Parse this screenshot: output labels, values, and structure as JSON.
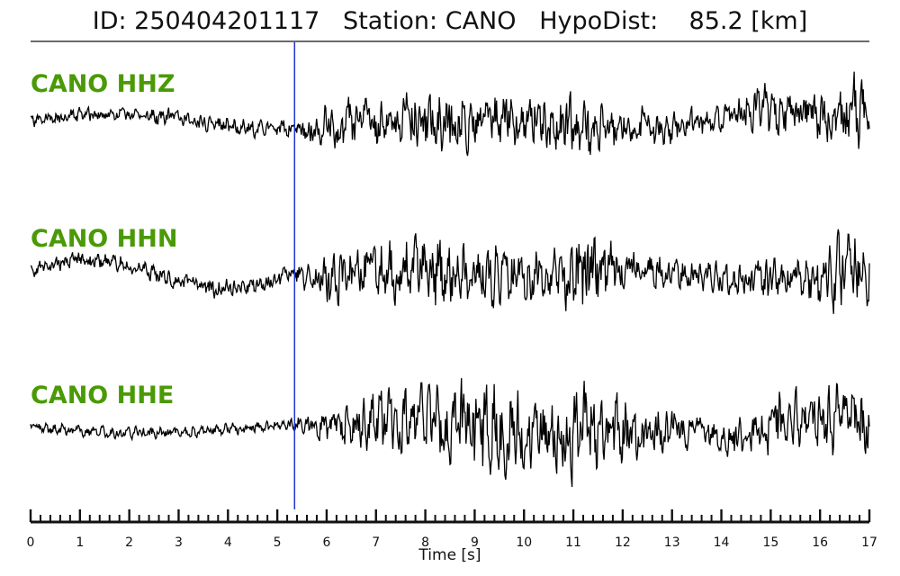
{
  "header": {
    "title": "ID: 250404201117   Station: CANO   HypoDist:    85.2 [km]"
  },
  "chart_data": {
    "type": "line",
    "xlabel": "Time [s]",
    "xlim": [
      0,
      17
    ],
    "major_ticks": [
      0,
      1,
      2,
      3,
      4,
      5,
      6,
      7,
      8,
      9,
      10,
      11,
      12,
      13,
      14,
      15,
      16,
      17
    ],
    "minor_tick_step": 0.2,
    "pick_marker": {
      "time": 5.35,
      "color": "#2233cc"
    },
    "label_color": "#4a9a06",
    "trace_color": "#000000",
    "series": [
      {
        "name": "CANO HHZ",
        "seed": 11
      },
      {
        "name": "CANO HHN",
        "seed": 23
      },
      {
        "name": "CANO HHE",
        "seed": 37
      }
    ]
  }
}
